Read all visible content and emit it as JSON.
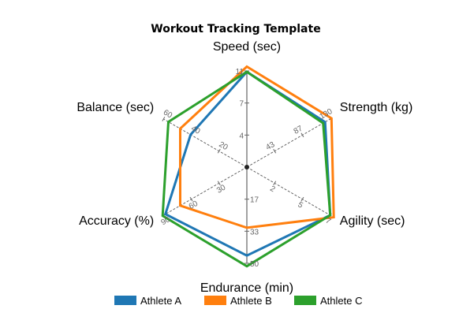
{
  "chart_data": {
    "type": "radar",
    "title": "Workout Tracking Template",
    "axes": [
      {
        "name": "Speed (sec)",
        "ticks": [
          "4",
          "7",
          "11"
        ],
        "max": 11
      },
      {
        "name": "Strength (kg)",
        "ticks": [
          "43",
          "87",
          "130"
        ],
        "max": 130
      },
      {
        "name": "Agility (sec)",
        "ticks": [
          "2",
          "5",
          "7"
        ],
        "max": 7
      },
      {
        "name": "Endurance (min)",
        "ticks": [
          "17",
          "33",
          "50"
        ],
        "max": 50
      },
      {
        "name": "Accuracy (%)",
        "ticks": [
          "30",
          "60",
          "90"
        ],
        "max": 90
      },
      {
        "name": "Balance (sec)",
        "ticks": [
          "20",
          "40",
          "60"
        ],
        "max": 60
      }
    ],
    "series": [
      {
        "name": "Athlete A",
        "color": "#1f77b4",
        "values": [
          10.9,
          122,
          7.0,
          46,
          88,
          40.5
        ]
      },
      {
        "name": "Athlete B",
        "color": "#ff7f0e",
        "values": [
          11.5,
          132,
          7.3,
          31.5,
          72,
          48
        ]
      },
      {
        "name": "Athlete C",
        "color": "#2ca02c",
        "values": [
          10.9,
          119,
          7.0,
          51.5,
          91,
          56.5
        ]
      }
    ],
    "legend_position": "bottom",
    "grid": "radial-spokes-only"
  }
}
